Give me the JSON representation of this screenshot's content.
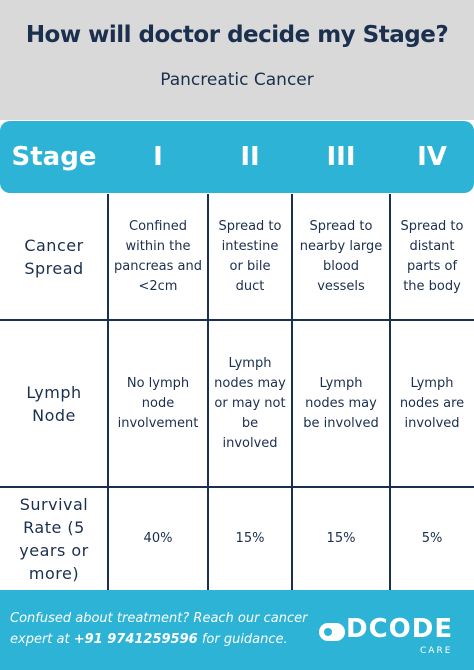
{
  "header": {
    "title": "How will doctor decide my Stage?",
    "subtitle": "Pancreatic Cancer"
  },
  "table": {
    "columns": [
      "Stage",
      "I",
      "II",
      "III",
      "IV"
    ],
    "rows": [
      [
        "Cancer Spread",
        "Confined within the pancreas and <2cm",
        "Spread to intestine or bile duct",
        "Spread to nearby large blood vessels",
        "Spread to distant parts of the body"
      ],
      [
        "Lymph Node",
        "No lymph node involvement",
        "Lymph nodes may or may not be involved",
        "Lymph nodes may be involved",
        "Lymph nodes are involved"
      ],
      [
        "Survival Rate (5 years or more)",
        "40%",
        "15%",
        "15%",
        "5%"
      ]
    ]
  },
  "footer": {
    "text_before": "Confused about treatment? Reach our cancer expert at ",
    "phone": "+91 9741259596",
    "text_after": " for guidance.",
    "logo": "DCODE",
    "logo_sub": "CARE"
  }
}
